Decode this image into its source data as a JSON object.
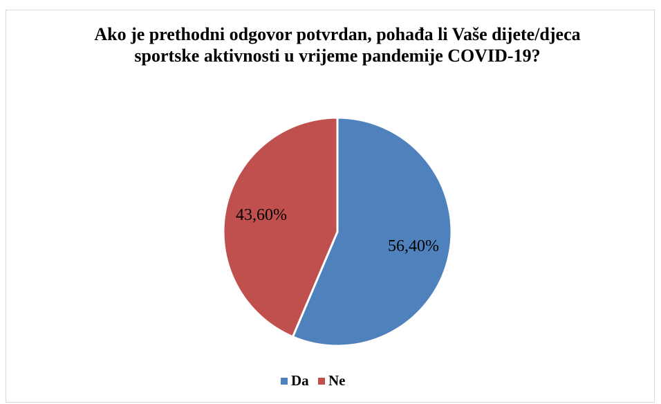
{
  "chart_data": {
    "type": "pie",
    "title": "Ako je prethodni odgovor potvrdan, pohađa li Vaše dijete/djeca sportske aktivnosti u vrijeme pandemije COVID-19?",
    "categories": [
      "Da",
      "Ne"
    ],
    "values": [
      56.4,
      43.6
    ],
    "value_labels": [
      "56,40%",
      "43,60%"
    ],
    "colors": [
      "#4f81bd",
      "#c0504d"
    ],
    "legend": "bottom"
  }
}
